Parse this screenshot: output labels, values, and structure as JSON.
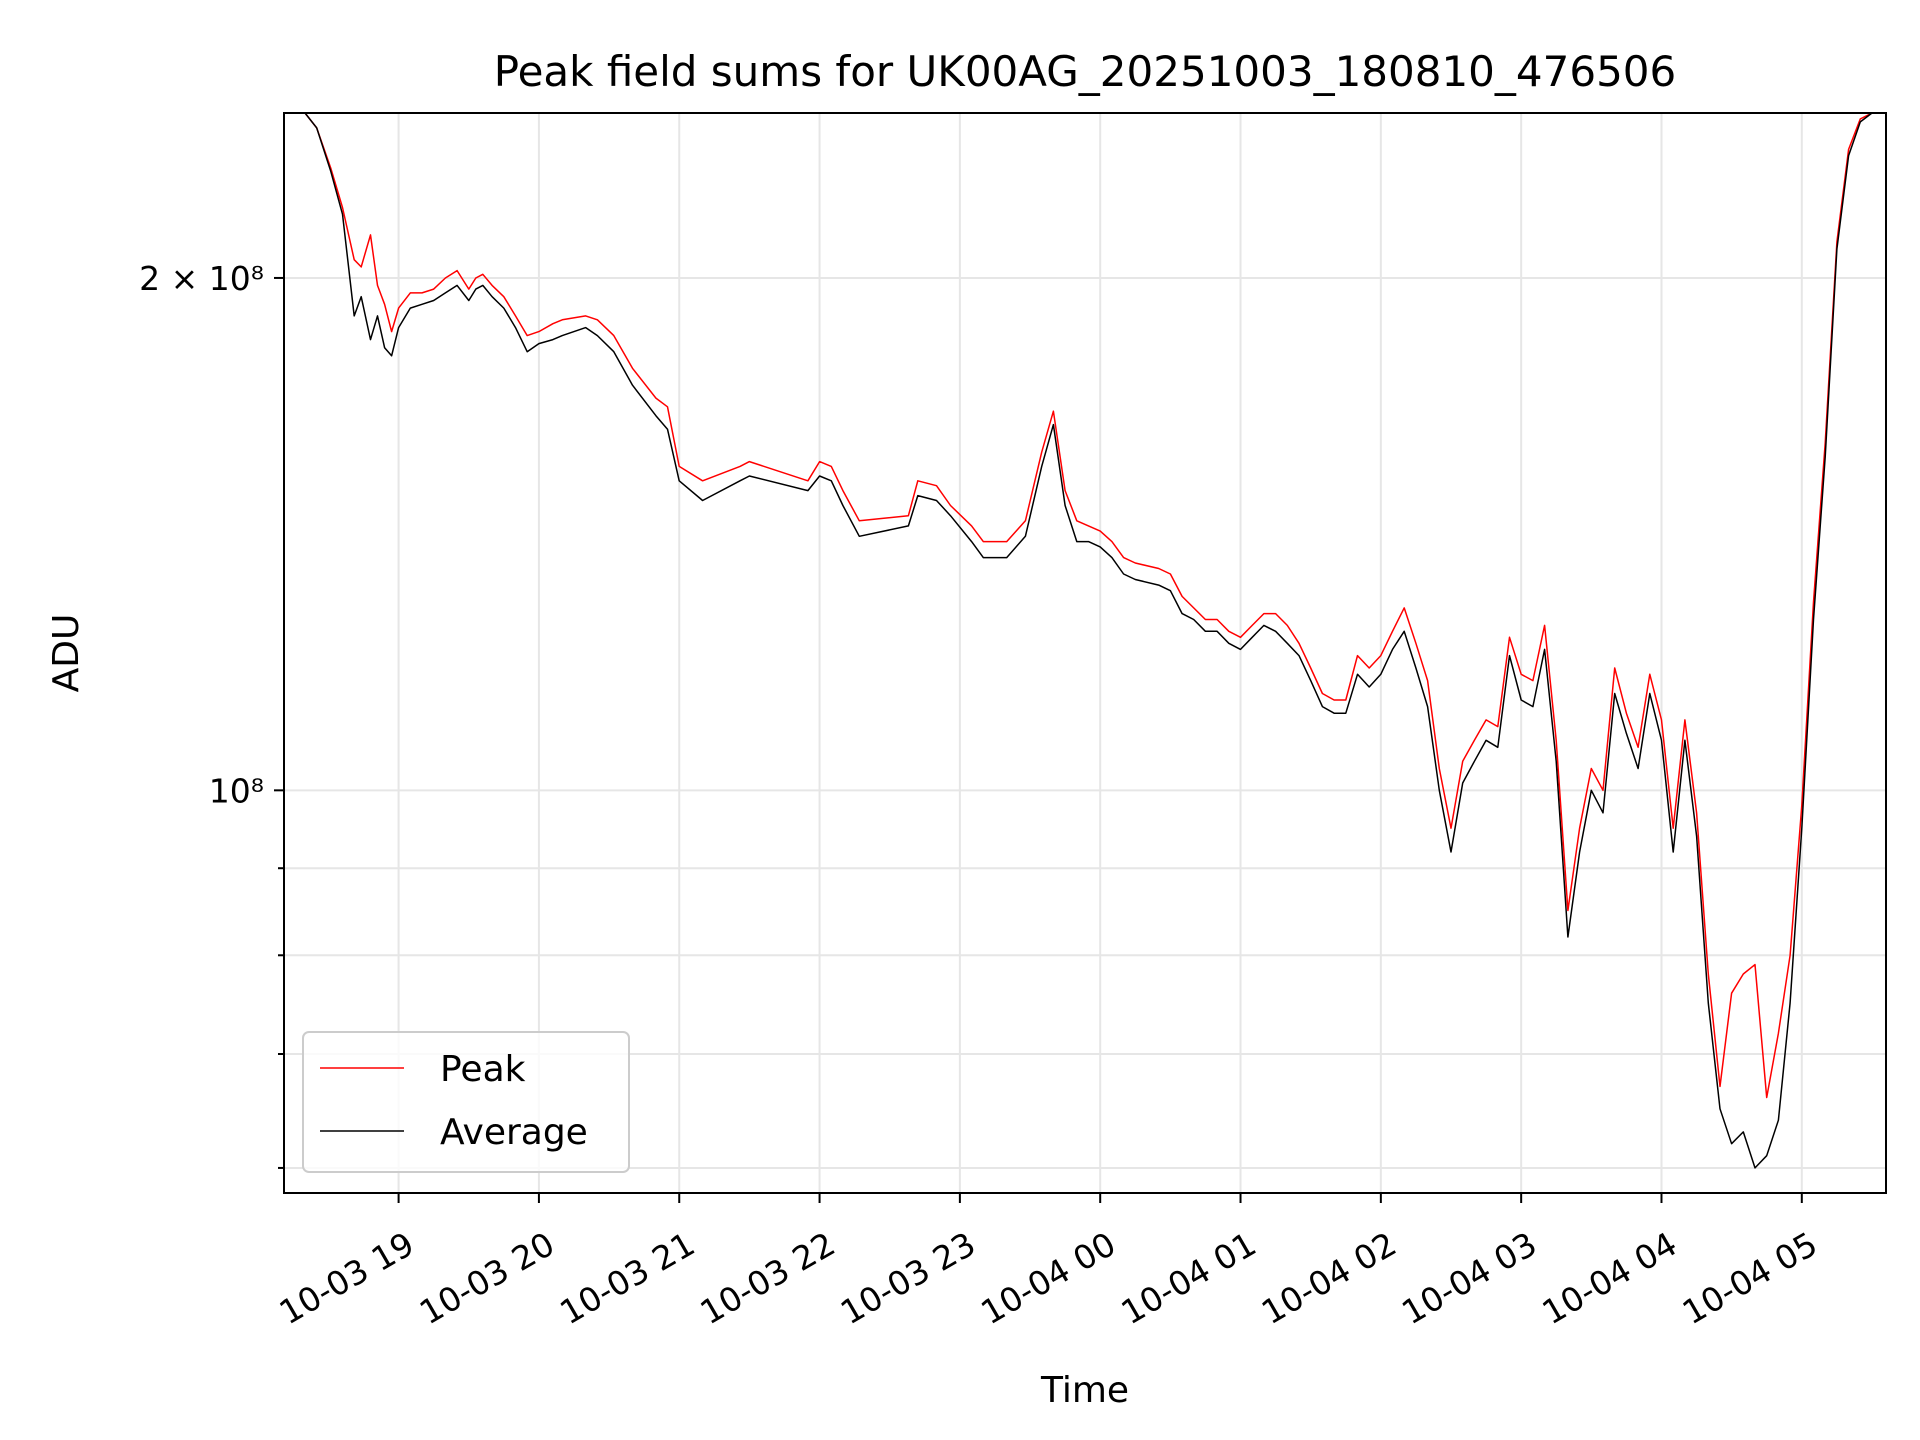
{
  "chart_data": {
    "type": "line",
    "title": "Peak field sums for UK00AG_20251003_180810_476506",
    "xlabel": "Time",
    "ylabel": "ADU",
    "yscale": "log",
    "ylim": [
      58000000,
      250000000
    ],
    "xlim": [
      "2025-10-03 18:11",
      "2025-10-04 05:36"
    ],
    "grid": true,
    "legend_position": "lower-left",
    "x_ticks": [
      {
        "value": "2025-10-03 19:00",
        "label": "10-03 19"
      },
      {
        "value": "2025-10-03 20:00",
        "label": "10-03 20"
      },
      {
        "value": "2025-10-03 21:00",
        "label": "10-03 21"
      },
      {
        "value": "2025-10-03 22:00",
        "label": "10-03 22"
      },
      {
        "value": "2025-10-03 23:00",
        "label": "10-03 23"
      },
      {
        "value": "2025-10-04 00:00",
        "label": "10-04 00"
      },
      {
        "value": "2025-10-04 01:00",
        "label": "10-04 01"
      },
      {
        "value": "2025-10-04 02:00",
        "label": "10-04 02"
      },
      {
        "value": "2025-10-04 03:00",
        "label": "10-04 03"
      },
      {
        "value": "2025-10-04 04:00",
        "label": "10-04 04"
      },
      {
        "value": "2025-10-04 05:00",
        "label": "10-04 05"
      }
    ],
    "y_ticks": [
      {
        "value": 200000000,
        "label": "2 × 10⁸"
      },
      {
        "value": 100000000,
        "label": "10⁸"
      }
    ],
    "y_minor_ticks": [
      90000000,
      80000000,
      70000000,
      60000000
    ],
    "series": [
      {
        "name": "Peak",
        "color": "#ff0000",
        "x": [
          "2025-10-03 18:11",
          "2025-10-03 18:20",
          "2025-10-03 18:25",
          "2025-10-03 18:31",
          "2025-10-03 18:36",
          "2025-10-03 18:41",
          "2025-10-03 18:44",
          "2025-10-03 18:48",
          "2025-10-03 18:51",
          "2025-10-03 18:54",
          "2025-10-03 18:57",
          "2025-10-03 19:00",
          "2025-10-03 19:05",
          "2025-10-03 19:10",
          "2025-10-03 19:15",
          "2025-10-03 19:20",
          "2025-10-03 19:25",
          "2025-10-03 19:30",
          "2025-10-03 19:33",
          "2025-10-03 19:36",
          "2025-10-03 19:40",
          "2025-10-03 19:45",
          "2025-10-03 19:50",
          "2025-10-03 19:55",
          "2025-10-03 20:00",
          "2025-10-03 20:06",
          "2025-10-03 20:10",
          "2025-10-03 20:20",
          "2025-10-03 20:25",
          "2025-10-03 20:32",
          "2025-10-03 20:40",
          "2025-10-03 20:50",
          "2025-10-03 20:55",
          "2025-10-03 21:00",
          "2025-10-03 21:10",
          "2025-10-03 21:26",
          "2025-10-03 21:30",
          "2025-10-03 21:55",
          "2025-10-03 22:00",
          "2025-10-03 22:05",
          "2025-10-03 22:10",
          "2025-10-03 22:17",
          "2025-10-03 22:38",
          "2025-10-03 22:42",
          "2025-10-03 22:50",
          "2025-10-03 22:56",
          "2025-10-03 23:05",
          "2025-10-03 23:10",
          "2025-10-03 23:20",
          "2025-10-03 23:28",
          "2025-10-03 23:35",
          "2025-10-03 23:40",
          "2025-10-03 23:45",
          "2025-10-03 23:50",
          "2025-10-03 23:55",
          "2025-10-04 00:00",
          "2025-10-04 00:05",
          "2025-10-04 00:10",
          "2025-10-04 00:15",
          "2025-10-04 00:25",
          "2025-10-04 00:30",
          "2025-10-04 00:35",
          "2025-10-04 00:40",
          "2025-10-04 00:45",
          "2025-10-04 00:50",
          "2025-10-04 00:55",
          "2025-10-04 01:00",
          "2025-10-04 01:05",
          "2025-10-04 01:10",
          "2025-10-04 01:15",
          "2025-10-04 01:20",
          "2025-10-04 01:25",
          "2025-10-04 01:30",
          "2025-10-04 01:35",
          "2025-10-04 01:40",
          "2025-10-04 01:45",
          "2025-10-04 01:50",
          "2025-10-04 01:55",
          "2025-10-04 02:00",
          "2025-10-04 02:05",
          "2025-10-04 02:10",
          "2025-10-04 02:15",
          "2025-10-04 02:20",
          "2025-10-04 02:25",
          "2025-10-04 02:30",
          "2025-10-04 02:35",
          "2025-10-04 02:40",
          "2025-10-04 02:45",
          "2025-10-04 02:50",
          "2025-10-04 02:55",
          "2025-10-04 03:00",
          "2025-10-04 03:05",
          "2025-10-04 03:10",
          "2025-10-04 03:15",
          "2025-10-04 03:20",
          "2025-10-04 03:25",
          "2025-10-04 03:30",
          "2025-10-04 03:35",
          "2025-10-04 03:40",
          "2025-10-04 03:45",
          "2025-10-04 03:50",
          "2025-10-04 03:55",
          "2025-10-04 04:00",
          "2025-10-04 04:05",
          "2025-10-04 04:10",
          "2025-10-04 04:15",
          "2025-10-04 04:20",
          "2025-10-04 04:25",
          "2025-10-04 04:30",
          "2025-10-04 04:35",
          "2025-10-04 04:40",
          "2025-10-04 04:45",
          "2025-10-04 04:50",
          "2025-10-04 04:55",
          "2025-10-04 05:00",
          "2025-10-04 05:05",
          "2025-10-04 05:10",
          "2025-10-04 05:15",
          "2025-10-04 05:20",
          "2025-10-04 05:25",
          "2025-10-04 05:30",
          "2025-10-04 05:36"
        ],
        "values": [
          250000000,
          250000000,
          245000000,
          232000000,
          220000000,
          205000000,
          203000000,
          212000000,
          198000000,
          193000000,
          186000000,
          192000000,
          196000000,
          196000000,
          197000000,
          200000000,
          202000000,
          197000000,
          200000000,
          201000000,
          198000000,
          195000000,
          190000000,
          185000000,
          186000000,
          188000000,
          189000000,
          190000000,
          189000000,
          185000000,
          177000000,
          170000000,
          168000000,
          155000000,
          152000000,
          155000000,
          156000000,
          152000000,
          156000000,
          155000000,
          150000000,
          144000000,
          145000000,
          152000000,
          151000000,
          147000000,
          143000000,
          140000000,
          140000000,
          144000000,
          158000000,
          167000000,
          150000000,
          144000000,
          143000000,
          142000000,
          140000000,
          137000000,
          136000000,
          135000000,
          134000000,
          130000000,
          128000000,
          126000000,
          126000000,
          124000000,
          123000000,
          125000000,
          127000000,
          127000000,
          125000000,
          122000000,
          118000000,
          114000000,
          113000000,
          113000000,
          120000000,
          118000000,
          120000000,
          124000000,
          128000000,
          122000000,
          116000000,
          103000000,
          95000000,
          104000000,
          107000000,
          110000000,
          109000000,
          123000000,
          117000000,
          116000000,
          125000000,
          107000000,
          85000000,
          95000000,
          103000000,
          100000000,
          118000000,
          111000000,
          106000000,
          117000000,
          110000000,
          95000000,
          110000000,
          97000000,
          78000000,
          67000000,
          76000000,
          78000000,
          79000000,
          66000000,
          72000000,
          80000000,
          98000000,
          129000000,
          160000000,
          210000000,
          238000000,
          248000000,
          250000000,
          250000000
        ]
      },
      {
        "name": "Average",
        "color": "#000000",
        "x": [
          "2025-10-03 18:11",
          "2025-10-03 18:20",
          "2025-10-03 18:25",
          "2025-10-03 18:31",
          "2025-10-03 18:36",
          "2025-10-03 18:41",
          "2025-10-03 18:44",
          "2025-10-03 18:48",
          "2025-10-03 18:51",
          "2025-10-03 18:54",
          "2025-10-03 18:57",
          "2025-10-03 19:00",
          "2025-10-03 19:05",
          "2025-10-03 19:10",
          "2025-10-03 19:15",
          "2025-10-03 19:20",
          "2025-10-03 19:25",
          "2025-10-03 19:30",
          "2025-10-03 19:33",
          "2025-10-03 19:36",
          "2025-10-03 19:40",
          "2025-10-03 19:45",
          "2025-10-03 19:50",
          "2025-10-03 19:55",
          "2025-10-03 20:00",
          "2025-10-03 20:06",
          "2025-10-03 20:10",
          "2025-10-03 20:20",
          "2025-10-03 20:25",
          "2025-10-03 20:32",
          "2025-10-03 20:40",
          "2025-10-03 20:50",
          "2025-10-03 20:55",
          "2025-10-03 21:00",
          "2025-10-03 21:10",
          "2025-10-03 21:26",
          "2025-10-03 21:30",
          "2025-10-03 21:55",
          "2025-10-03 22:00",
          "2025-10-03 22:05",
          "2025-10-03 22:10",
          "2025-10-03 22:17",
          "2025-10-03 22:38",
          "2025-10-03 22:42",
          "2025-10-03 22:50",
          "2025-10-03 22:56",
          "2025-10-03 23:05",
          "2025-10-03 23:10",
          "2025-10-03 23:20",
          "2025-10-03 23:28",
          "2025-10-03 23:35",
          "2025-10-03 23:40",
          "2025-10-03 23:45",
          "2025-10-03 23:50",
          "2025-10-03 23:55",
          "2025-10-04 00:00",
          "2025-10-04 00:05",
          "2025-10-04 00:10",
          "2025-10-04 00:15",
          "2025-10-04 00:25",
          "2025-10-04 00:30",
          "2025-10-04 00:35",
          "2025-10-04 00:40",
          "2025-10-04 00:45",
          "2025-10-04 00:50",
          "2025-10-04 00:55",
          "2025-10-04 01:00",
          "2025-10-04 01:05",
          "2025-10-04 01:10",
          "2025-10-04 01:15",
          "2025-10-04 01:20",
          "2025-10-04 01:25",
          "2025-10-04 01:30",
          "2025-10-04 01:35",
          "2025-10-04 01:40",
          "2025-10-04 01:45",
          "2025-10-04 01:50",
          "2025-10-04 01:55",
          "2025-10-04 02:00",
          "2025-10-04 02:05",
          "2025-10-04 02:10",
          "2025-10-04 02:15",
          "2025-10-04 02:20",
          "2025-10-04 02:25",
          "2025-10-04 02:30",
          "2025-10-04 02:35",
          "2025-10-04 02:40",
          "2025-10-04 02:45",
          "2025-10-04 02:50",
          "2025-10-04 02:55",
          "2025-10-04 03:00",
          "2025-10-04 03:05",
          "2025-10-04 03:10",
          "2025-10-04 03:15",
          "2025-10-04 03:20",
          "2025-10-04 03:25",
          "2025-10-04 03:30",
          "2025-10-04 03:35",
          "2025-10-04 03:40",
          "2025-10-04 03:45",
          "2025-10-04 03:50",
          "2025-10-04 03:55",
          "2025-10-04 04:00",
          "2025-10-04 04:05",
          "2025-10-04 04:10",
          "2025-10-04 04:15",
          "2025-10-04 04:20",
          "2025-10-04 04:25",
          "2025-10-04 04:30",
          "2025-10-04 04:35",
          "2025-10-04 04:40",
          "2025-10-04 04:45",
          "2025-10-04 04:50",
          "2025-10-04 04:55",
          "2025-10-04 05:00",
          "2025-10-04 05:05",
          "2025-10-04 05:10",
          "2025-10-04 05:15",
          "2025-10-04 05:20",
          "2025-10-04 05:25",
          "2025-10-04 05:30",
          "2025-10-04 05:36"
        ],
        "values": [
          250000000,
          250000000,
          245000000,
          231000000,
          218000000,
          190000000,
          195000000,
          184000000,
          190000000,
          182000000,
          180000000,
          187000000,
          192000000,
          193000000,
          194000000,
          196000000,
          198000000,
          194000000,
          197000000,
          198000000,
          195000000,
          192000000,
          187000000,
          181000000,
          183000000,
          184000000,
          185000000,
          187000000,
          185000000,
          181000000,
          173000000,
          166000000,
          163000000,
          152000000,
          148000000,
          152000000,
          153000000,
          150000000,
          153000000,
          152000000,
          147000000,
          141000000,
          143000000,
          149000000,
          148000000,
          145000000,
          140000000,
          137000000,
          137000000,
          141000000,
          155000000,
          164000000,
          147000000,
          140000000,
          140000000,
          139000000,
          137000000,
          134000000,
          133000000,
          132000000,
          131000000,
          127000000,
          126000000,
          124000000,
          124000000,
          122000000,
          121000000,
          123000000,
          125000000,
          124000000,
          122000000,
          120000000,
          116000000,
          112000000,
          111000000,
          111000000,
          117000000,
          115000000,
          117000000,
          121000000,
          124000000,
          118000000,
          112000000,
          100000000,
          92000000,
          101000000,
          104000000,
          107000000,
          106000000,
          120000000,
          113000000,
          112000000,
          121000000,
          104000000,
          82000000,
          92000000,
          100000000,
          97000000,
          114000000,
          108000000,
          103000000,
          114000000,
          107000000,
          92000000,
          107000000,
          94000000,
          75000000,
          65000000,
          62000000,
          63000000,
          60000000,
          61000000,
          64000000,
          75000000,
          95000000,
          126000000,
          157000000,
          208000000,
          236000000,
          247000000,
          250000000,
          250000000
        ]
      }
    ]
  }
}
